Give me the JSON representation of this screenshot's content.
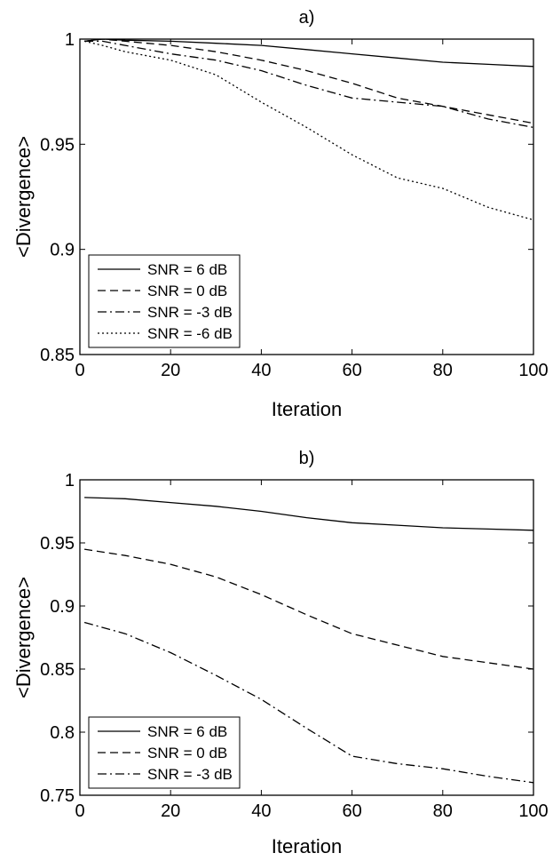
{
  "chart_data": [
    {
      "type": "line",
      "title": "a)",
      "xlabel": "Iteration",
      "ylabel": "<Divergence>",
      "xlim": [
        0,
        100
      ],
      "ylim": [
        0.85,
        1
      ],
      "xticks": [
        0,
        20,
        40,
        60,
        80,
        100
      ],
      "yticks": [
        0.85,
        0.9,
        0.95,
        1
      ],
      "xtick_labels": [
        "0",
        "20",
        "40",
        "60",
        "80",
        "100"
      ],
      "ytick_labels": [
        "0.85",
        "0.9",
        "0.95",
        "1"
      ],
      "grid": false,
      "legend_position": "bottom-left",
      "x": [
        1,
        5,
        10,
        20,
        30,
        40,
        50,
        60,
        70,
        80,
        90,
        100
      ],
      "series": [
        {
          "name": "SNR = 6 dB",
          "style": "solid",
          "values": [
            0.999,
            1.0,
            0.9995,
            0.999,
            0.998,
            0.997,
            0.995,
            0.993,
            0.991,
            0.989,
            0.988,
            0.987
          ]
        },
        {
          "name": "SNR = 0 dB",
          "style": "dashed",
          "values": [
            0.999,
            1.0,
            0.999,
            0.997,
            0.994,
            0.99,
            0.985,
            0.979,
            0.972,
            0.968,
            0.964,
            0.96
          ]
        },
        {
          "name": "SNR = -3 dB",
          "style": "dashdot",
          "values": [
            0.999,
            0.999,
            0.997,
            0.993,
            0.99,
            0.985,
            0.978,
            0.972,
            0.97,
            0.968,
            0.962,
            0.958
          ]
        },
        {
          "name": "SNR = -6 dB",
          "style": "dotted",
          "values": [
            0.999,
            0.997,
            0.994,
            0.99,
            0.983,
            0.97,
            0.958,
            0.945,
            0.934,
            0.929,
            0.92,
            0.914
          ]
        }
      ]
    },
    {
      "type": "line",
      "title": "b)",
      "xlabel": "Iteration",
      "ylabel": "<Divergence>",
      "xlim": [
        0,
        100
      ],
      "ylim": [
        0.75,
        1
      ],
      "xticks": [
        0,
        20,
        40,
        60,
        80,
        100
      ],
      "yticks": [
        0.75,
        0.8,
        0.85,
        0.9,
        0.95,
        1
      ],
      "xtick_labels": [
        "0",
        "20",
        "40",
        "60",
        "80",
        "100"
      ],
      "ytick_labels": [
        "0.75",
        "0.8",
        "0.85",
        "0.9",
        "0.95",
        "1"
      ],
      "grid": false,
      "legend_position": "bottom-left",
      "x": [
        1,
        10,
        20,
        30,
        40,
        50,
        60,
        70,
        80,
        90,
        100
      ],
      "series": [
        {
          "name": "SNR = 6 dB",
          "style": "solid",
          "values": [
            0.986,
            0.985,
            0.982,
            0.979,
            0.975,
            0.97,
            0.966,
            0.964,
            0.962,
            0.961,
            0.96
          ]
        },
        {
          "name": "SNR = 0 dB",
          "style": "dashed",
          "values": [
            0.945,
            0.94,
            0.933,
            0.923,
            0.909,
            0.893,
            0.878,
            0.869,
            0.86,
            0.855,
            0.85
          ]
        },
        {
          "name": "SNR = -3 dB",
          "style": "dashdot",
          "values": [
            0.887,
            0.878,
            0.863,
            0.845,
            0.826,
            0.803,
            0.781,
            0.775,
            0.771,
            0.765,
            0.76
          ]
        }
      ]
    }
  ]
}
